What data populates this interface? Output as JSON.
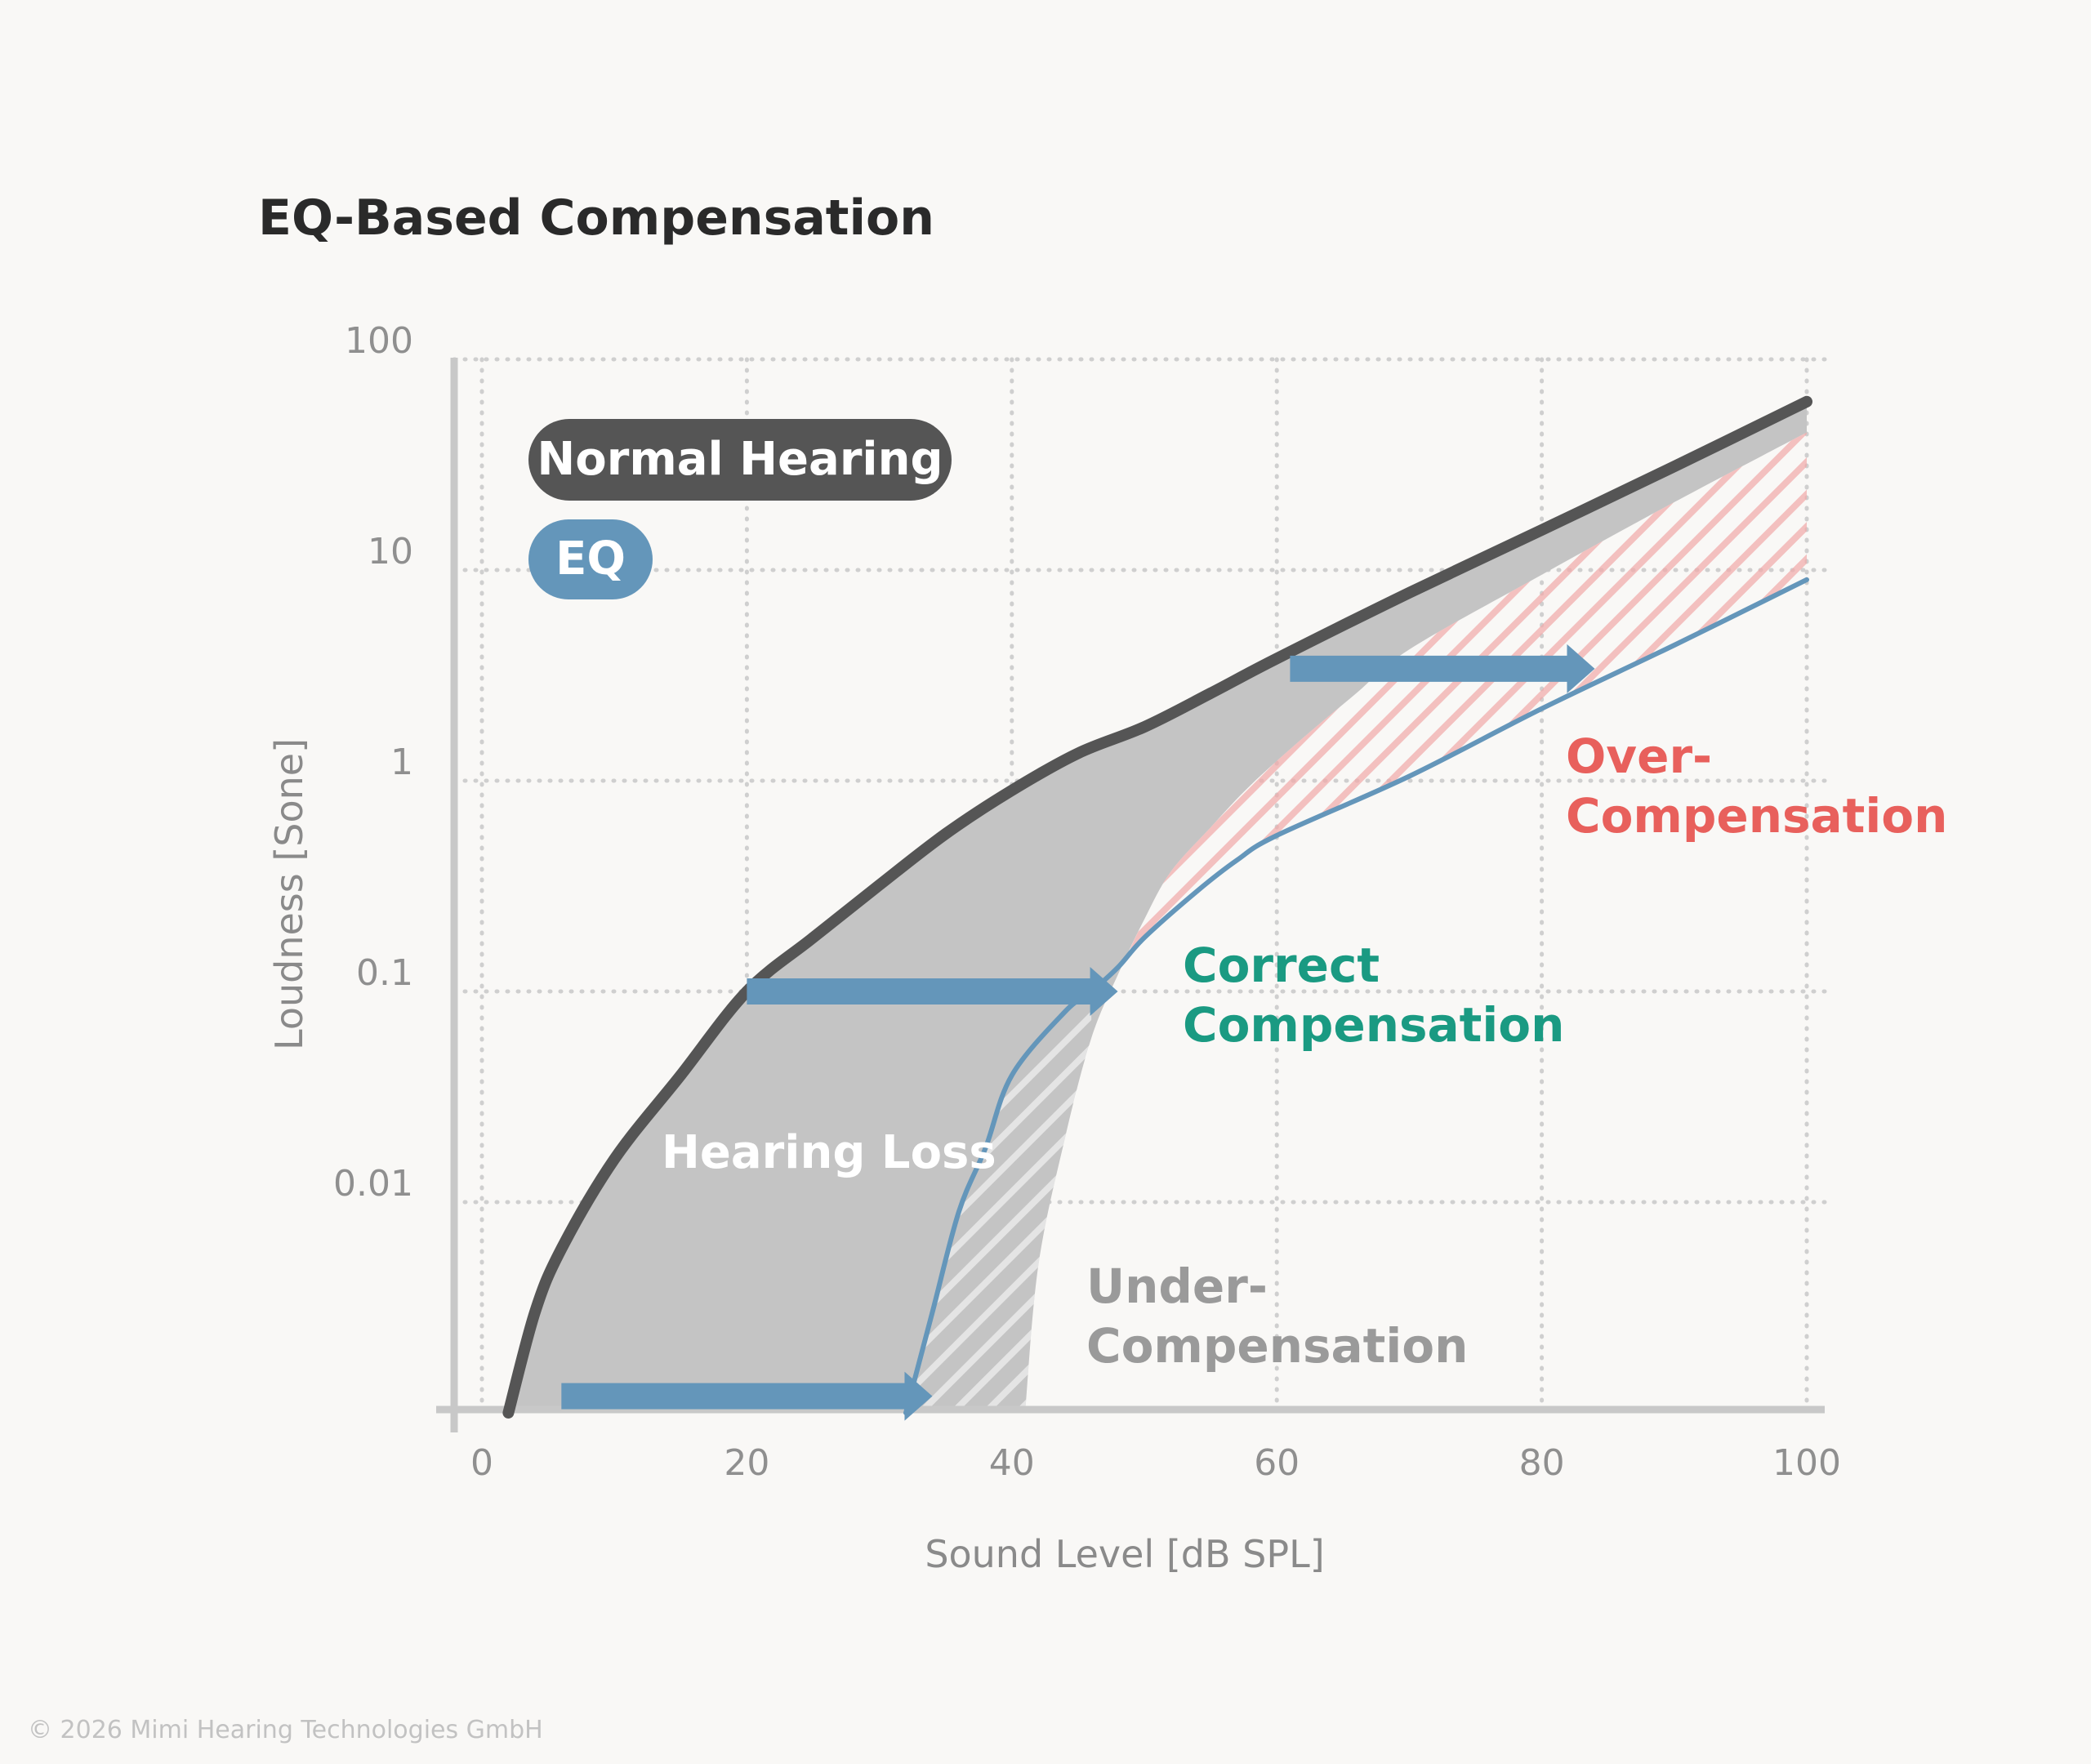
{
  "copyright": "© 2026 Mimi Hearing Technologies GmbH",
  "chart_data": {
    "type": "line",
    "title": "EQ-Based Compensation",
    "xlabel": "Sound Level [dB SPL]",
    "ylabel": "Loudness [Sone]",
    "xlim": [
      0,
      100
    ],
    "ylim": [
      0.001,
      100
    ],
    "y_scale": "log",
    "x_ticks": [
      {
        "value": 0,
        "label": "0"
      },
      {
        "value": 20,
        "label": "20"
      },
      {
        "value": 40,
        "label": "40"
      },
      {
        "value": 60,
        "label": "60"
      },
      {
        "value": 80,
        "label": "80"
      },
      {
        "value": 100,
        "label": "100"
      }
    ],
    "y_ticks": [
      {
        "value": 100,
        "label": "100"
      },
      {
        "value": 10,
        "label": "10"
      },
      {
        "value": 1,
        "label": "1"
      },
      {
        "value": 0.1,
        "label": "0.1"
      },
      {
        "value": 0.01,
        "label": "0.01"
      }
    ],
    "grid": true,
    "colors": {
      "normal": "#555555",
      "eq": "#6496ba",
      "band": "#c4c4c4",
      "over": "#f2a9a9",
      "over_text": "#e8605c",
      "correct_text": "#1a9a82",
      "under_text": "#9a9a9a",
      "axis": "#c8c8c8",
      "tick_text": "#8f8f8f"
    },
    "legend": {
      "position": "top-left",
      "items": [
        {
          "label": "Normal Hearing",
          "color": "#555555"
        },
        {
          "label": "EQ",
          "color": "#6496ba"
        }
      ]
    },
    "series": [
      {
        "name": "Normal Hearing",
        "points": [
          [
            2,
            0.001
          ],
          [
            4,
            0.003
          ],
          [
            6,
            0.006
          ],
          [
            10,
            0.016
          ],
          [
            15,
            0.04
          ],
          [
            20,
            0.1
          ],
          [
            25,
            0.18
          ],
          [
            30,
            0.32
          ],
          [
            35,
            0.56
          ],
          [
            40,
            0.9
          ],
          [
            45,
            1.35
          ],
          [
            50,
            1.8
          ],
          [
            55,
            2.6
          ],
          [
            60,
            3.8
          ],
          [
            70,
            7.8
          ],
          [
            80,
            15.5
          ],
          [
            90,
            31
          ],
          [
            100,
            63
          ]
        ]
      },
      {
        "name": "EQ",
        "points": [
          [
            32,
            0.001
          ],
          [
            34,
            0.003
          ],
          [
            36,
            0.009
          ],
          [
            38,
            0.018
          ],
          [
            40,
            0.04
          ],
          [
            44,
            0.08
          ],
          [
            46,
            0.1
          ],
          [
            48,
            0.13
          ],
          [
            50,
            0.18
          ],
          [
            54,
            0.3
          ],
          [
            57,
            0.42
          ],
          [
            60,
            0.55
          ],
          [
            70,
            1.05
          ],
          [
            80,
            2.2
          ],
          [
            90,
            4.4
          ],
          [
            100,
            9
          ]
        ]
      }
    ],
    "regions": [
      {
        "name": "Hearing Loss",
        "lower_boundary": [
          [
            41,
            0.001
          ],
          [
            42,
            0.005
          ],
          [
            44,
            0.02
          ],
          [
            46,
            0.06
          ],
          [
            48,
            0.12
          ],
          [
            50,
            0.22
          ],
          [
            52,
            0.37
          ],
          [
            55,
            0.6
          ],
          [
            58,
            0.95
          ],
          [
            62,
            1.6
          ],
          [
            66,
            2.6
          ],
          [
            70,
            4.2
          ],
          [
            80,
            9.5
          ],
          [
            90,
            21
          ],
          [
            100,
            45
          ]
        ]
      },
      {
        "name": "Under-Compensation"
      },
      {
        "name": "Over-Compensation"
      }
    ],
    "arrows": [
      {
        "y": 0.0012,
        "x_start": 6,
        "x_end": 34
      },
      {
        "y": 0.1,
        "x_start": 20,
        "x_end": 48
      },
      {
        "y": 3.4,
        "x_start": 61,
        "x_end": 84
      }
    ],
    "annotations": [
      {
        "text": "Hearing Loss",
        "color": "#ffffff"
      },
      {
        "text": "Correct",
        "color": "#1a9a82"
      },
      {
        "text": "Compensation",
        "color": "#1a9a82"
      },
      {
        "text": "Over-",
        "color": "#e8605c"
      },
      {
        "text": "Compensation",
        "color": "#e8605c"
      },
      {
        "text": "Under-",
        "color": "#9a9a9a"
      },
      {
        "text": "Compensation",
        "color": "#9a9a9a"
      }
    ]
  }
}
